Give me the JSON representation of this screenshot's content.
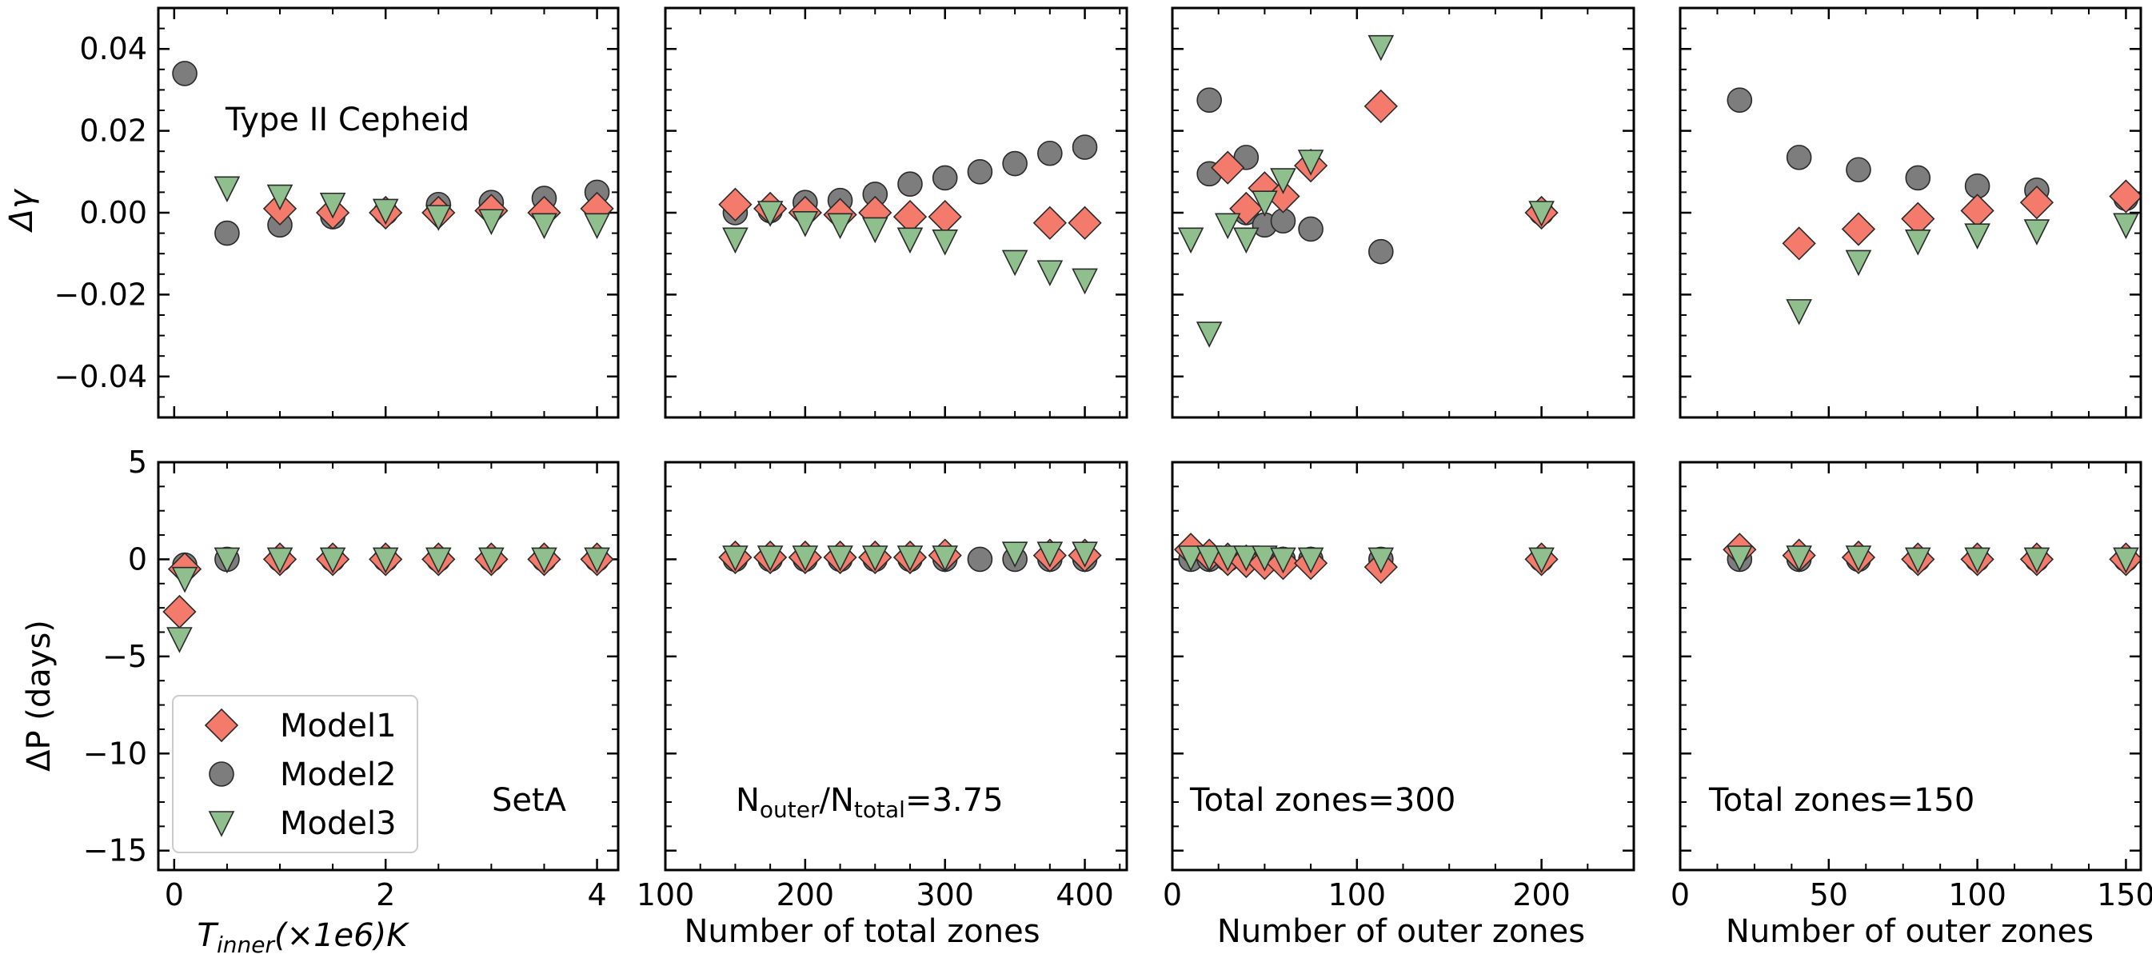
{
  "figure": {
    "ylabel_top": "Δγ",
    "ylabel_bottom": "ΔP (days)",
    "legend": [
      "Model1",
      "Model2",
      "Model3"
    ],
    "colors": {
      "Model1": "#f47a6b",
      "Model2": "#7d7d7d",
      "Model3": "#8fbf8c",
      "edge": "#2a2a2a"
    }
  },
  "chart_data": [
    {
      "type": "scatter",
      "panel": "top-1",
      "title": "",
      "xlabel": "",
      "ylabel": "Δγ",
      "xlim": [
        -0.15,
        4.2
      ],
      "ylim": [
        -0.05,
        0.05
      ],
      "xticks": [
        0,
        2,
        4
      ],
      "xtick_labels": [],
      "yticks": [
        -0.04,
        -0.02,
        0.0,
        0.02,
        0.04
      ],
      "ytick_labels": [
        "−0.04",
        "−0.02",
        "0.00",
        "0.02",
        "0.04"
      ],
      "annotation": "Type II Cepheid",
      "series": [
        {
          "name": "Model1",
          "x": [
            1.0,
            1.5,
            2.0,
            2.5,
            3.0,
            3.5,
            4.0
          ],
          "y": [
            0.001,
            0.0,
            0.0,
            0.0,
            0.0005,
            0.0,
            0.001
          ]
        },
        {
          "name": "Model2",
          "x": [
            0.1,
            0.5,
            1.0,
            1.5,
            2.0,
            2.5,
            3.0,
            3.5,
            4.0
          ],
          "y": [
            0.034,
            -0.005,
            -0.003,
            -0.001,
            0.0,
            0.002,
            0.0025,
            0.0035,
            0.005
          ]
        },
        {
          "name": "Model3",
          "x": [
            0.5,
            1.0,
            1.5,
            2.0,
            2.5,
            3.0,
            3.5,
            4.0
          ],
          "y": [
            0.006,
            0.004,
            0.002,
            0.0005,
            -0.001,
            -0.002,
            -0.003,
            -0.003
          ]
        }
      ]
    },
    {
      "type": "scatter",
      "panel": "top-2",
      "xlim": [
        100,
        430
      ],
      "ylim": [
        -0.05,
        0.05
      ],
      "xticks": [
        100,
        200,
        300,
        400
      ],
      "xtick_labels": [],
      "yticks": [
        -0.04,
        -0.02,
        0.0,
        0.02,
        0.04
      ],
      "ytick_labels": [],
      "series": [
        {
          "name": "Model1",
          "x": [
            150,
            175,
            200,
            225,
            250,
            275,
            300,
            375,
            400
          ],
          "y": [
            0.002,
            0.001,
            0.0,
            -0.0005,
            0.0,
            -0.001,
            -0.001,
            -0.0025,
            -0.0025
          ]
        },
        {
          "name": "Model2",
          "x": [
            150,
            175,
            200,
            225,
            250,
            275,
            300,
            325,
            350,
            375,
            400
          ],
          "y": [
            0.0,
            0.0005,
            0.0025,
            0.003,
            0.0045,
            0.007,
            0.0085,
            0.01,
            0.012,
            0.0145,
            0.016
          ]
        },
        {
          "name": "Model3",
          "x": [
            150,
            175,
            200,
            225,
            250,
            275,
            300,
            350,
            375,
            400
          ],
          "y": [
            -0.0065,
            0.0,
            -0.0025,
            -0.003,
            -0.004,
            -0.0065,
            -0.007,
            -0.012,
            -0.0145,
            -0.0165
          ]
        }
      ]
    },
    {
      "type": "scatter",
      "panel": "top-3",
      "xlim": [
        0,
        250
      ],
      "ylim": [
        -0.05,
        0.05
      ],
      "xticks": [
        0,
        100,
        200
      ],
      "xtick_labels": [],
      "yticks": [
        -0.04,
        -0.02,
        0.0,
        0.02,
        0.04
      ],
      "ytick_labels": [],
      "series": [
        {
          "name": "Model1",
          "x": [
            30,
            40,
            50,
            60,
            75,
            113,
            200
          ],
          "y": [
            0.011,
            0.001,
            0.006,
            0.004,
            0.0115,
            0.026,
            0.0
          ]
        },
        {
          "name": "Model2",
          "x": [
            20,
            20,
            40,
            40,
            50,
            60,
            75,
            113,
            200
          ],
          "y": [
            0.0275,
            0.0095,
            0.0135,
            0.0,
            -0.003,
            -0.002,
            -0.004,
            -0.0095,
            0.0
          ]
        },
        {
          "name": "Model3",
          "x": [
            10,
            20,
            30,
            40,
            50,
            60,
            75,
            113,
            200
          ],
          "y": [
            -0.0065,
            -0.0295,
            -0.003,
            -0.0065,
            0.0025,
            0.008,
            0.0125,
            0.0405,
            0.0
          ]
        }
      ]
    },
    {
      "type": "scatter",
      "panel": "top-4",
      "xlim": [
        0,
        155
      ],
      "ylim": [
        -0.05,
        0.05
      ],
      "xticks": [
        0,
        50,
        100,
        150
      ],
      "xtick_labels": [],
      "yticks": [
        -0.04,
        -0.02,
        0.0,
        0.02,
        0.04
      ],
      "ytick_labels": [],
      "series": [
        {
          "name": "Model1",
          "x": [
            40,
            60,
            80,
            100,
            120,
            150
          ],
          "y": [
            -0.0075,
            -0.004,
            -0.0015,
            0.0005,
            0.0025,
            0.004
          ]
        },
        {
          "name": "Model2",
          "x": [
            20,
            40,
            60,
            80,
            100,
            120,
            150
          ],
          "y": [
            0.0275,
            0.0135,
            0.0105,
            0.0085,
            0.0065,
            0.0055,
            0.0035
          ]
        },
        {
          "name": "Model3",
          "x": [
            40,
            60,
            80,
            100,
            120,
            150
          ],
          "y": [
            -0.024,
            -0.012,
            -0.007,
            -0.0055,
            -0.0045,
            -0.003
          ]
        }
      ]
    },
    {
      "type": "scatter",
      "panel": "bottom-1",
      "xlabel": "T_inner(×1e6)K",
      "ylabel": "ΔP (days)",
      "xlim": [
        -0.15,
        4.2
      ],
      "ylim": [
        -16,
        5
      ],
      "xticks": [
        0,
        2,
        4
      ],
      "xtick_labels": [
        "0",
        "2",
        "4"
      ],
      "yticks": [
        -15,
        -10,
        -5,
        0,
        5
      ],
      "ytick_labels": [
        "−15",
        "−10",
        "−5",
        "0",
        "5"
      ],
      "annotation": "SetA",
      "series": [
        {
          "name": "Model1",
          "x": [
            0.05,
            0.1,
            1.0,
            1.5,
            2.0,
            2.5,
            3.0,
            3.5,
            4.0
          ],
          "y": [
            -2.7,
            -0.5,
            0.0,
            0.0,
            0.0,
            0.0,
            0.0,
            0.0,
            0.0
          ]
        },
        {
          "name": "Model2",
          "x": [
            0.1,
            0.5,
            1.0,
            1.5,
            2.0,
            2.5,
            3.0,
            3.5,
            4.0
          ],
          "y": [
            -0.3,
            0.0,
            0.0,
            0.0,
            0.0,
            0.0,
            0.0,
            0.0,
            0.0
          ]
        },
        {
          "name": "Model3",
          "x": [
            0.05,
            0.1,
            0.5,
            1.0,
            1.5,
            2.0,
            2.5,
            3.0,
            3.5,
            4.0
          ],
          "y": [
            -4.1,
            -1.0,
            0.0,
            0.0,
            0.0,
            0.0,
            0.0,
            0.0,
            0.0,
            0.0
          ]
        }
      ]
    },
    {
      "type": "scatter",
      "panel": "bottom-2",
      "xlabel": "Number of total zones",
      "xlim": [
        100,
        430
      ],
      "ylim": [
        -16,
        5
      ],
      "xticks": [
        100,
        200,
        300,
        400
      ],
      "xtick_labels": [
        "100",
        "200",
        "300",
        "400"
      ],
      "yticks": [
        -15,
        -10,
        -5,
        0,
        5
      ],
      "ytick_labels": [],
      "annotation": "N_outer/N_total=3.75",
      "series": [
        {
          "name": "Model1",
          "x": [
            150,
            175,
            200,
            225,
            250,
            275,
            300,
            375,
            400
          ],
          "y": [
            0.1,
            0.1,
            0.1,
            0.1,
            0.1,
            0.1,
            0.2,
            0.2,
            0.2
          ]
        },
        {
          "name": "Model2",
          "x": [
            150,
            175,
            200,
            225,
            250,
            275,
            300,
            325,
            350,
            375,
            400
          ],
          "y": [
            0.0,
            0.0,
            0.0,
            0.0,
            0.0,
            0.0,
            0.0,
            0.0,
            0.0,
            0.0,
            0.0
          ]
        },
        {
          "name": "Model3",
          "x": [
            150,
            175,
            200,
            225,
            250,
            275,
            300,
            350,
            375,
            400
          ],
          "y": [
            0.1,
            0.1,
            0.1,
            0.1,
            0.1,
            0.1,
            0.1,
            0.3,
            0.3,
            0.3
          ]
        }
      ]
    },
    {
      "type": "scatter",
      "panel": "bottom-3",
      "xlabel": "Number of outer zones",
      "xlim": [
        0,
        250
      ],
      "ylim": [
        -16,
        5
      ],
      "xticks": [
        0,
        100,
        200
      ],
      "xtick_labels": [
        "0",
        "100",
        "200"
      ],
      "yticks": [
        -15,
        -10,
        -5,
        0,
        5
      ],
      "ytick_labels": [],
      "annotation": "Total zones=300",
      "series": [
        {
          "name": "Model1",
          "x": [
            10,
            20,
            30,
            40,
            50,
            60,
            75,
            113,
            200
          ],
          "y": [
            0.5,
            0.2,
            0.0,
            -0.1,
            -0.2,
            -0.2,
            -0.2,
            -0.4,
            0.0
          ]
        },
        {
          "name": "Model2",
          "x": [
            10,
            20,
            30,
            40,
            50,
            60,
            75,
            113,
            200
          ],
          "y": [
            0.0,
            0.0,
            0.0,
            0.0,
            0.0,
            0.0,
            0.0,
            0.0,
            0.0
          ]
        },
        {
          "name": "Model3",
          "x": [
            10,
            20,
            30,
            40,
            50,
            60,
            75,
            113,
            200
          ],
          "y": [
            0.1,
            0.1,
            0.1,
            0.1,
            0.1,
            0.0,
            0.0,
            0.0,
            0.0
          ]
        }
      ]
    },
    {
      "type": "scatter",
      "panel": "bottom-4",
      "xlabel": "Number of outer zones",
      "xlim": [
        0,
        155
      ],
      "ylim": [
        -16,
        5
      ],
      "xticks": [
        0,
        50,
        100,
        150
      ],
      "xtick_labels": [
        "0",
        "50",
        "100",
        "150"
      ],
      "yticks": [
        -15,
        -10,
        -5,
        0,
        5
      ],
      "ytick_labels": [],
      "annotation": "Total zones=150",
      "series": [
        {
          "name": "Model1",
          "x": [
            20,
            40,
            60,
            80,
            100,
            120,
            150
          ],
          "y": [
            0.5,
            0.2,
            0.1,
            0.0,
            0.0,
            0.0,
            0.0
          ]
        },
        {
          "name": "Model2",
          "x": [
            20,
            40,
            60,
            80,
            100,
            120,
            150
          ],
          "y": [
            0.0,
            0.0,
            0.0,
            0.0,
            0.0,
            0.0,
            0.0
          ]
        },
        {
          "name": "Model3",
          "x": [
            20,
            40,
            60,
            80,
            100,
            120,
            150
          ],
          "y": [
            0.1,
            0.1,
            0.1,
            0.0,
            0.0,
            0.0,
            0.0
          ]
        }
      ]
    }
  ]
}
